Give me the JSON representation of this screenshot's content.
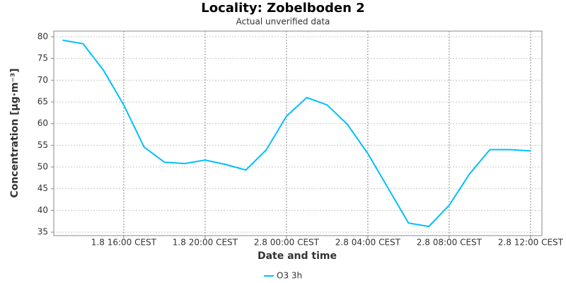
{
  "chart_data": {
    "type": "line",
    "title": "Locality: Zobelboden 2",
    "subtitle": "Actual unverified data",
    "x_label": "Date and time",
    "y_label": "Concentration [µg·m⁻³]",
    "x": [
      13,
      14,
      15,
      16,
      17,
      18,
      19,
      20,
      21,
      22,
      23,
      24,
      25,
      26,
      27,
      28,
      29,
      30,
      31,
      32,
      33,
      34,
      35,
      36
    ],
    "series": [
      {
        "name": "O3 3h",
        "color": "#00bfff",
        "values": [
          79.2,
          78.4,
          72.3,
          64.3,
          54.6,
          51.1,
          50.8,
          51.6,
          50.6,
          49.3,
          53.9,
          61.7,
          66.0,
          64.3,
          59.8,
          53.1,
          45.1,
          37.1,
          36.3,
          41.2,
          48.4,
          54.0,
          54.0,
          53.7
        ]
      }
    ],
    "xlim": [
      12.56,
      36.56
    ],
    "xticks": [
      {
        "value": 16,
        "label": "1.8 16:00 CEST"
      },
      {
        "value": 20,
        "label": "1.8 20:00 CEST"
      },
      {
        "value": 24,
        "label": "2.8 00:00 CEST"
      },
      {
        "value": 28,
        "label": "2.8 04:00 CEST"
      },
      {
        "value": 32,
        "label": "2.8 08:00 CEST"
      },
      {
        "value": 36,
        "label": "2.8 12:00 CEST"
      }
    ],
    "ylim": [
      34.2,
      81.3
    ],
    "yticks": [
      35,
      40,
      45,
      50,
      55,
      60,
      65,
      70,
      75,
      80
    ],
    "grid": true
  }
}
